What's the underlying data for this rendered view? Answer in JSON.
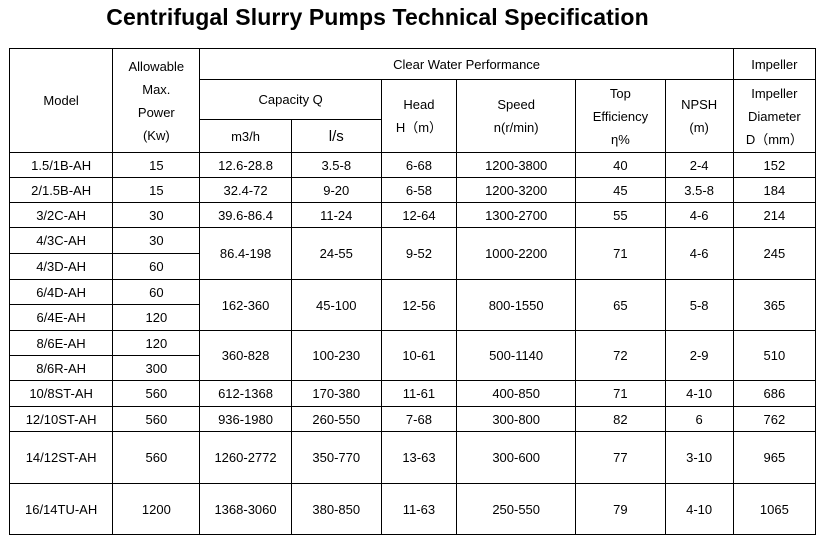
{
  "title": "Centrifugal Slurry Pumps Technical Specification",
  "headers": {
    "model": "Model",
    "power_l1": "Allowable",
    "power_l2": "Max.",
    "power_l3": "Power",
    "power_l4": "(Kw)",
    "clear_water": "Clear Water Performance",
    "impeller_group": "Impeller",
    "capacity": "Capacity Q",
    "cap_m3h": "m3/h",
    "cap_ls": "l/s",
    "head_l1": "Head",
    "head_l2": "H（m）",
    "speed_l1": "Speed",
    "speed_l2": "n(r/min)",
    "eff_l1": "Top",
    "eff_l2": "Efficiency",
    "eff_l3": "η%",
    "npsh_l1": "NPSH",
    "npsh_l2": "(m)",
    "imp_l1": "Impeller",
    "imp_l2": "Diameter",
    "imp_l3": "D（mm）"
  },
  "rows": [
    {
      "model": "1.5/1B-AH",
      "power": "15"
    },
    {
      "model": "2/1.5B-AH",
      "power": "15"
    },
    {
      "model": "3/2C-AH",
      "power": "30"
    },
    {
      "model": "4/3C-AH",
      "power": "30"
    },
    {
      "model": "4/3D-AH",
      "power": "60"
    },
    {
      "model": "6/4D-AH",
      "power": "60"
    },
    {
      "model": "6/4E-AH",
      "power": "120"
    },
    {
      "model": "8/6E-AH",
      "power": "120"
    },
    {
      "model": "8/6R-AH",
      "power": "300"
    },
    {
      "model": "10/8ST-AH",
      "power": "560"
    },
    {
      "model": "12/10ST-AH",
      "power": "560"
    },
    {
      "model": "14/12ST-AH",
      "power": "560"
    },
    {
      "model": "16/14TU-AH",
      "power": "1200"
    }
  ],
  "perf": [
    {
      "cap_m3h": "12.6-28.8",
      "cap_ls": "3.5-8",
      "head": "6-68",
      "speed": "1200-3800",
      "eff": "40",
      "npsh": "2-4",
      "impeller": "152"
    },
    {
      "cap_m3h": "32.4-72",
      "cap_ls": "9-20",
      "head": "6-58",
      "speed": "1200-3200",
      "eff": "45",
      "npsh": "3.5-8",
      "impeller": "184"
    },
    {
      "cap_m3h": "39.6-86.4",
      "cap_ls": "11-24",
      "head": "12-64",
      "speed": "1300-2700",
      "eff": "55",
      "npsh": "4-6",
      "impeller": "214"
    },
    {
      "cap_m3h": "86.4-198",
      "cap_ls": "24-55",
      "head": "9-52",
      "speed": "1000-2200",
      "eff": "71",
      "npsh": "4-6",
      "impeller": "245"
    },
    {
      "cap_m3h": "162-360",
      "cap_ls": "45-100",
      "head": "12-56",
      "speed": "800-1550",
      "eff": "65",
      "npsh": "5-8",
      "impeller": "365"
    },
    {
      "cap_m3h": "360-828",
      "cap_ls": "100-230",
      "head": "10-61",
      "speed": "500-1140",
      "eff": "72",
      "npsh": "2-9",
      "impeller": "510"
    },
    {
      "cap_m3h": "612-1368",
      "cap_ls": "170-380",
      "head": "11-61",
      "speed": "400-850",
      "eff": "71",
      "npsh": "4-10",
      "impeller": "686"
    },
    {
      "cap_m3h": "936-1980",
      "cap_ls": "260-550",
      "head": "7-68",
      "speed": "300-800",
      "eff": "82",
      "npsh": "6",
      "impeller": "762"
    },
    {
      "cap_m3h": "1260-2772",
      "cap_ls": "350-770",
      "head": "13-63",
      "speed": "300-600",
      "eff": "77",
      "npsh": "3-10",
      "impeller": "965"
    },
    {
      "cap_m3h": "1368-3060",
      "cap_ls": "380-850",
      "head": "11-63",
      "speed": "250-550",
      "eff": "79",
      "npsh": "4-10",
      "impeller": "1065"
    }
  ]
}
